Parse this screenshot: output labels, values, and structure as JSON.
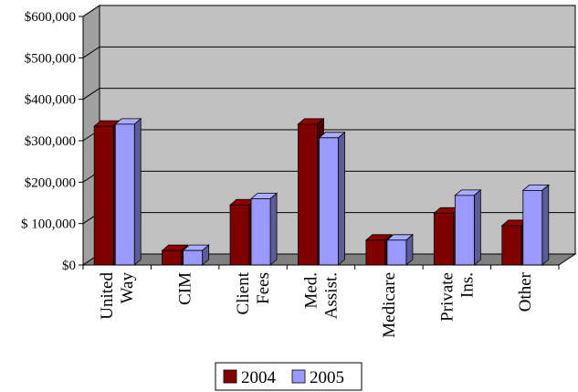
{
  "chart_data": {
    "type": "bar",
    "style": "3d-clustered-column",
    "categories": [
      [
        "United",
        "Way"
      ],
      [
        "CIM"
      ],
      [
        "Client",
        "Fees"
      ],
      [
        "Med.",
        "Assist."
      ],
      [
        "Medicare"
      ],
      [
        "Private",
        "Ins."
      ],
      [
        "Other"
      ]
    ],
    "series": [
      {
        "name": "2004",
        "color": "#800000",
        "values": [
          335000,
          35000,
          145000,
          340000,
          60000,
          125000,
          95000
        ]
      },
      {
        "name": "2005",
        "color": "#9999ff",
        "values": [
          340000,
          35000,
          160000,
          307000,
          60000,
          168000,
          180000
        ]
      }
    ],
    "ylim": [
      0,
      600000
    ],
    "yticks": [
      0,
      100000,
      200000,
      300000,
      400000,
      500000,
      600000
    ],
    "ytick_labels": [
      "$0",
      "$ 100,000",
      "$200,000",
      "$300,000",
      "$400,000",
      "$500,000",
      "$600,000"
    ],
    "grid": true,
    "legend_position": "bottom",
    "colors": {
      "plot_wall": "#c0c0c0",
      "floor": "#808080",
      "grid": "#000000"
    }
  }
}
